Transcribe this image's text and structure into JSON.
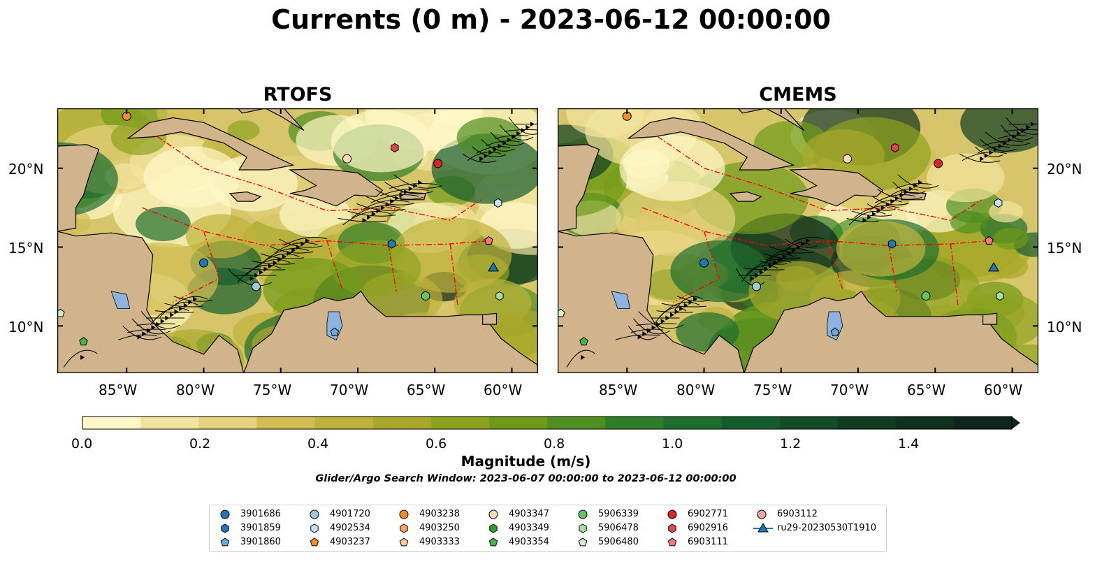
{
  "figure": {
    "title": "Currents (0 m) - 2023-06-12 00:00:00"
  },
  "panels": [
    {
      "title": "RTOFS"
    },
    {
      "title": "CMEMS"
    }
  ],
  "map": {
    "lon_range": [
      -89.5,
      -58.3
    ],
    "lat_range": [
      7.0,
      23.8
    ],
    "lon_tick_labels": [
      "85°W",
      "80°W",
      "75°W",
      "70°W",
      "65°W",
      "60°W"
    ],
    "lat_tick_labels": [
      "20°N",
      "15°N",
      "10°N"
    ],
    "colors": {
      "land": "#d2b48c",
      "lakes": "#8fb3e0",
      "boundaries_eez": "#ff0000",
      "streamlines": "#000000"
    }
  },
  "colorbar": {
    "label": "Magnitude (m/s)",
    "range": [
      0.0,
      1.5
    ],
    "extend": "max",
    "tick_labels": [
      "0.0",
      "0.2",
      "0.4",
      "0.6",
      "0.8",
      "1.0",
      "1.2",
      "1.4"
    ],
    "colors": [
      "#fff8c8",
      "#f2e4a0",
      "#e4d27c",
      "#d2bd55",
      "#bdb23c",
      "#a9a82c",
      "#8ea21f",
      "#6f9a1a",
      "#4f8f1f",
      "#2f7d26",
      "#1f6d2e",
      "#155c2d",
      "#124c28",
      "#103d22",
      "#0f301c",
      "#0d251a"
    ]
  },
  "search_window": "Glider/Argo Search Window: 2023-06-07 00:00:00 to 2023-06-12 00:00:00",
  "legend": {
    "items": [
      {
        "label": "3901686",
        "marker": "circle",
        "color": "#1f77b4"
      },
      {
        "label": "3901859",
        "marker": "hexagon",
        "color": "#1f77b4"
      },
      {
        "label": "3901860",
        "marker": "pentagon",
        "color": "#6fa8dc"
      },
      {
        "label": "4901720",
        "marker": "circle",
        "color": "#9ecae1"
      },
      {
        "label": "4902534",
        "marker": "hexagon",
        "color": "#c6e2f5"
      },
      {
        "label": "4903237",
        "marker": "pentagon",
        "color": "#f28e2b"
      },
      {
        "label": "4903238",
        "marker": "circle",
        "color": "#f28e2b"
      },
      {
        "label": "4903250",
        "marker": "hexagon",
        "color": "#f7a962"
      },
      {
        "label": "4903333",
        "marker": "pentagon",
        "color": "#fdc89a"
      },
      {
        "label": "4903347",
        "marker": "circle",
        "color": "#fdd9b5"
      },
      {
        "label": "4903349",
        "marker": "hexagon",
        "color": "#2ca02c"
      },
      {
        "label": "4903354",
        "marker": "pentagon",
        "color": "#4bb34b"
      },
      {
        "label": "5906339",
        "marker": "circle",
        "color": "#66c266"
      },
      {
        "label": "5906478",
        "marker": "hexagon",
        "color": "#a6dfa0"
      },
      {
        "label": "5906480",
        "marker": "pentagon",
        "color": "#ccf2c6"
      },
      {
        "label": "6902771",
        "marker": "circle",
        "color": "#d62728"
      },
      {
        "label": "6902916",
        "marker": "hexagon",
        "color": "#e04848"
      },
      {
        "label": "6903111",
        "marker": "pentagon",
        "color": "#f07a80"
      },
      {
        "label": "6903112",
        "marker": "circle",
        "color": "#f4a3a3"
      },
      {
        "label": "ru29-20230530T1910",
        "marker": "triangle-line",
        "color": "#1f77b4"
      }
    ]
  },
  "floats": [
    {
      "id": "3901686",
      "lon": -80.0,
      "lat": 14.0
    },
    {
      "id": "3901859",
      "lon": -67.8,
      "lat": 15.2
    },
    {
      "id": "3901860",
      "lon": -71.5,
      "lat": 9.6
    },
    {
      "id": "4901720",
      "lon": -76.6,
      "lat": 12.5
    },
    {
      "id": "4902534",
      "lon": -60.9,
      "lat": 17.8
    },
    {
      "id": "4903238",
      "lon": -85.0,
      "lat": 23.3
    },
    {
      "id": "4903347",
      "lon": -70.7,
      "lat": 20.6
    },
    {
      "id": "5906339",
      "lon": -65.6,
      "lat": 11.9
    },
    {
      "id": "5906478",
      "lon": -60.8,
      "lat": 11.9
    },
    {
      "id": "5906480",
      "lon": -89.3,
      "lat": 10.8
    },
    {
      "id": "4903354",
      "lon": -87.8,
      "lat": 9.0
    },
    {
      "id": "6902771",
      "lon": -64.8,
      "lat": 20.3
    },
    {
      "id": "6902916",
      "lon": -67.6,
      "lat": 21.3
    },
    {
      "id": "6903111",
      "lon": -61.5,
      "lat": 15.4
    },
    {
      "id": "ru29-20230530T1910",
      "lon": -61.2,
      "lat": 13.7
    }
  ]
}
